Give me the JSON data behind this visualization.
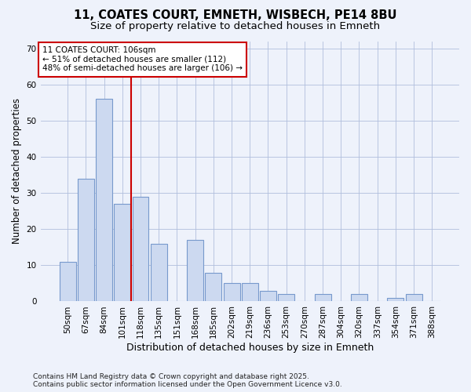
{
  "title_line1": "11, COATES COURT, EMNETH, WISBECH, PE14 8BU",
  "title_line2": "Size of property relative to detached houses in Emneth",
  "xlabel": "Distribution of detached houses by size in Emneth",
  "ylabel": "Number of detached properties",
  "categories": [
    "50sqm",
    "67sqm",
    "84sqm",
    "101sqm",
    "118sqm",
    "135sqm",
    "151sqm",
    "168sqm",
    "185sqm",
    "202sqm",
    "219sqm",
    "236sqm",
    "253sqm",
    "270sqm",
    "287sqm",
    "304sqm",
    "320sqm",
    "337sqm",
    "354sqm",
    "371sqm",
    "388sqm"
  ],
  "values": [
    11,
    34,
    56,
    27,
    29,
    16,
    0,
    17,
    8,
    5,
    5,
    3,
    2,
    0,
    2,
    0,
    2,
    0,
    1,
    2,
    0
  ],
  "bar_color": "#ccd9f0",
  "bar_edge_color": "#7799cc",
  "vline_pos": 3.5,
  "vline_color": "#cc0000",
  "annotation_title": "11 COATES COURT: 106sqm",
  "annotation_line2": "← 51% of detached houses are smaller (112)",
  "annotation_line3": "48% of semi-detached houses are larger (106) →",
  "annotation_box_color": "#ffffff",
  "annotation_box_edge": "#cc0000",
  "ylim": [
    0,
    72
  ],
  "yticks": [
    0,
    10,
    20,
    30,
    40,
    50,
    60,
    70
  ],
  "footnote1": "Contains HM Land Registry data © Crown copyright and database right 2025.",
  "footnote2": "Contains public sector information licensed under the Open Government Licence v3.0.",
  "bg_color": "#eef2fb",
  "grid_color": "#b0bedd",
  "title_fontsize": 10.5,
  "subtitle_fontsize": 9.5,
  "ylabel_fontsize": 8.5,
  "xlabel_fontsize": 9,
  "tick_fontsize": 7.5,
  "annot_fontsize": 7.5,
  "footnote_fontsize": 6.5
}
